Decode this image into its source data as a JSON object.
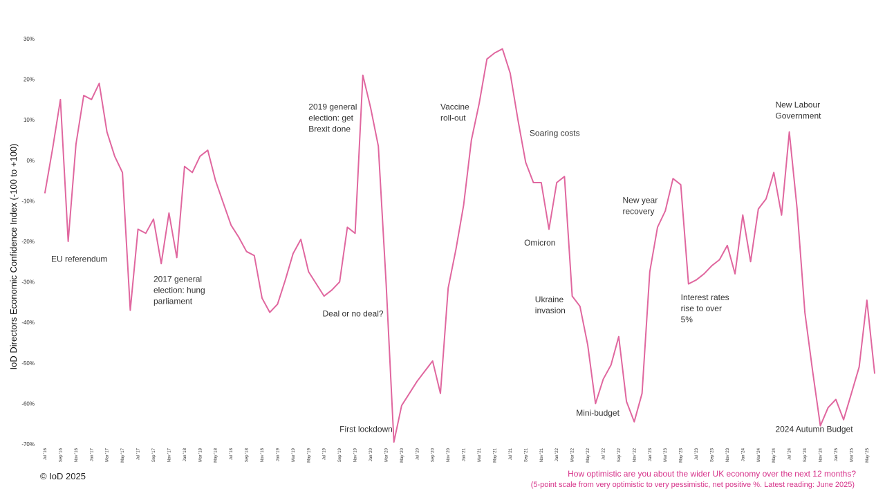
{
  "footer": {
    "copyright": "© IoD 2025",
    "question": "How optimistic are you about the wider UK economy over the next 12 months?",
    "note": "(5-point scale from very optimistic to very pessimistic, net positive %. Latest reading: June 2025)"
  },
  "chart_data": {
    "type": "line",
    "ylabel": "IoD Directors Economic Confidence Index (-100 to +100)",
    "ylim": [
      -70,
      30
    ],
    "yticks": [
      30,
      20,
      10,
      0,
      -10,
      -20,
      -30,
      -40,
      -50,
      -60,
      -70
    ],
    "ytick_labels": [
      "30%",
      "20%",
      "10%",
      "0%",
      "-10%",
      "-20%",
      "-30%",
      "-40%",
      "-50%",
      "-60%",
      "-70%"
    ],
    "line_color": "#e0679f",
    "grid": false,
    "x": [
      "Jul '16",
      "Aug '16",
      "Sep '16",
      "Oct '16",
      "Nov '16",
      "Dec '16",
      "Jan '17",
      "Feb '17",
      "Mar '17",
      "Apr '17",
      "May '17",
      "Jun '17",
      "Jul '17",
      "Aug '17",
      "Sep '17",
      "Oct '17",
      "Nov '17",
      "Dec '17",
      "Jan '18",
      "Feb '18",
      "Mar '18",
      "Apr '18",
      "May '18",
      "Jun '18",
      "Jul '18",
      "Aug '18",
      "Sep '18",
      "Oct '18",
      "Nov '18",
      "Dec '18",
      "Jan '19",
      "Feb '19",
      "Mar '19",
      "Apr '19",
      "May '19",
      "Jun '19",
      "Jul '19",
      "Aug '19",
      "Sep '19",
      "Oct '19",
      "Nov '19",
      "Dec '19",
      "Jan '20",
      "Feb '20",
      "Mar '20",
      "Apr '20",
      "May '20",
      "Jun '20",
      "Jul '20",
      "Aug '20",
      "Sep '20",
      "Oct '20",
      "Nov '20",
      "Dec '20",
      "Jan '21",
      "Feb '21",
      "Mar '21",
      "Apr '21",
      "May '21",
      "Jun '21",
      "Jul '21",
      "Aug '21",
      "Sep '21",
      "Oct '21",
      "Nov '21",
      "Dec '21",
      "Jan '22",
      "Feb '22",
      "Mar '22",
      "Apr '22",
      "May '22",
      "Jun '22",
      "Jul '22",
      "Aug '22",
      "Sep '22",
      "Oct '22",
      "Nov '22",
      "Dec '22",
      "Jan '23",
      "Feb '23",
      "Mar '23",
      "Apr '23",
      "May '23",
      "Jun '23",
      "Jul '23",
      "Aug '23",
      "Sep '23",
      "Oct '23",
      "Nov '23",
      "Dec '23",
      "Jan '24",
      "Feb '24",
      "Mar '24",
      "Apr '24",
      "May '24",
      "Jun '24",
      "Jul '24",
      "Aug '24",
      "Sep '24",
      "Oct '24",
      "Nov '24",
      "Dec '24",
      "Jan '25",
      "Feb '25",
      "Mar '25",
      "Apr '25",
      "May '25",
      "Jun '25"
    ],
    "xtick_labels": [
      "Jul '16",
      "Sep '16",
      "Nov '16",
      "Jan '17",
      "Mar '17",
      "May '17",
      "Jul '17",
      "Sep '17",
      "Nov '17",
      "Jan '18",
      "Mar '18",
      "May '18",
      "Jul '18",
      "Sep '18",
      "Nov '18",
      "Jan '19",
      "Mar '19",
      "May '19",
      "Jul '19",
      "Sep '19",
      "Nov '19",
      "Jan '20",
      "Mar '20",
      "May '20",
      "Jul '20",
      "Sep '20",
      "Nov '20",
      "Jan '21",
      "Mar '21",
      "May '21",
      "Jul '21",
      "Sep '21",
      "Nov '21",
      "Jan '22",
      "Mar '22",
      "May '22",
      "Jul '22",
      "Sep '22",
      "Nov '22",
      "Jan '23",
      "Mar '23",
      "May '23",
      "Jul '23",
      "Sep '23",
      "Nov '23",
      "Jan '24",
      "Mar '24",
      "May '24",
      "Jul '24",
      "Sep '24",
      "Nov '24",
      "Jan '25",
      "Mar '25",
      "May '25"
    ],
    "values": [
      -8,
      3,
      15,
      -20,
      4,
      16,
      15,
      19,
      7,
      1,
      -3,
      -37,
      -17,
      -18,
      -14.5,
      -25.5,
      -13,
      -24,
      -1.5,
      -3,
      1,
      2.5,
      -5,
      -10.5,
      -16,
      -19,
      -22.5,
      -23.5,
      -34,
      -37.5,
      -35.5,
      -29.5,
      -23,
      -19.5,
      -27.5,
      -30.5,
      -33.5,
      -32,
      -30,
      -16.5,
      -18,
      21,
      13,
      3.5,
      -30.5,
      -69.5,
      -60.5,
      -57.5,
      -54.5,
      -52,
      -49.5,
      -57.5,
      -31.5,
      -22,
      -11,
      5,
      14,
      25,
      26.5,
      27.5,
      21.5,
      10,
      -0.5,
      -5.5,
      -5.5,
      -17,
      -5.5,
      -4,
      -33.5,
      -36,
      -45.5,
      -60,
      -54,
      -50.5,
      -43.5,
      -59.5,
      -64.5,
      -57.5,
      -27.5,
      -16.5,
      -12.5,
      -4.5,
      -6,
      -30.5,
      -29.5,
      -28,
      -26,
      -24.5,
      -21,
      -28,
      -13.5,
      -25,
      -12,
      -9.5,
      -3,
      -13.5,
      7,
      -12,
      -37.5,
      -52,
      -65.5,
      -61,
      -59,
      -64,
      -57.5,
      -51,
      -34.5,
      -52.5
    ],
    "annotations": [
      {
        "lines": [
          "EU referendum"
        ],
        "x_index": 0.8,
        "y": -25
      },
      {
        "lines": [
          "2017 general",
          "election: hung",
          "parliament"
        ],
        "x_index": 14,
        "y": -30
      },
      {
        "lines": [
          "2019 general",
          "election: get",
          "Brexit done"
        ],
        "x_index": 34,
        "y": 12.5
      },
      {
        "lines": [
          "Deal or no deal?"
        ],
        "x_index": 35.8,
        "y": -38.5
      },
      {
        "lines": [
          "First lockdown"
        ],
        "x_index": 38,
        "y": -67
      },
      {
        "lines": [
          "Vaccine",
          "roll-out"
        ],
        "x_index": 51,
        "y": 12.5
      },
      {
        "lines": [
          "Soaring costs"
        ],
        "x_index": 62.5,
        "y": 6
      },
      {
        "lines": [
          "Omicron"
        ],
        "x_index": 61.8,
        "y": -21
      },
      {
        "lines": [
          "Ukraine",
          "invasion"
        ],
        "x_index": 63.2,
        "y": -35
      },
      {
        "lines": [
          "Mini-budget"
        ],
        "x_index": 68.5,
        "y": -63
      },
      {
        "lines": [
          "New year",
          "recovery"
        ],
        "x_index": 74.5,
        "y": -10.5
      },
      {
        "lines": [
          "Interest rates",
          "rise to over",
          "5%"
        ],
        "x_index": 82,
        "y": -34.5
      },
      {
        "lines": [
          "New Labour",
          "Government"
        ],
        "x_index": 94.2,
        "y": 13
      },
      {
        "lines": [
          "2024 Autumn Budget"
        ],
        "x_index": 94.2,
        "y": -67
      }
    ]
  }
}
